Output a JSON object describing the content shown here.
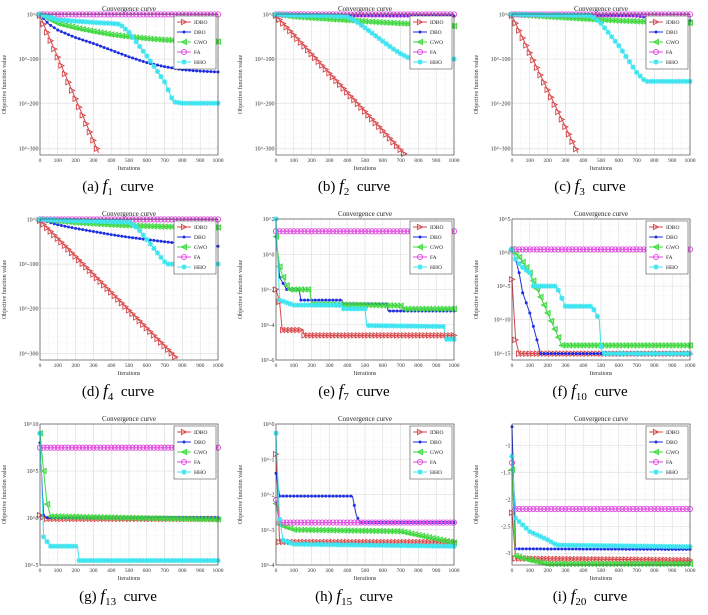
{
  "common": {
    "title": "Convergence curve",
    "xlabel": "Iterations",
    "ylabel": "Objective function value",
    "xticks": [
      0,
      100,
      200,
      300,
      400,
      500,
      600,
      700,
      800,
      900,
      1000
    ],
    "legend": [
      "IDBO",
      "DBO",
      "GWO",
      "FA",
      "HHO"
    ],
    "colors": {
      "IDBO": "#d9474a",
      "DBO": "#1f2ee0",
      "GWO": "#3fd83f",
      "FA": "#e04ae0",
      "HHO": "#3ee4ef"
    },
    "markers": {
      "IDBO": "tri-right",
      "DBO": "dot",
      "GWO": "tri-left",
      "FA": "circle",
      "HHO": "star"
    }
  },
  "chart_data": [
    {
      "type": "line",
      "caption": {
        "label": "(a)",
        "func": "f",
        "sub": "1",
        "suffix": "curve"
      },
      "yscale": "log",
      "ylim": [
        1e-315,
        10
      ],
      "yticks": [
        1,
        1e-100,
        1e-200,
        1e-300
      ],
      "yticklabels": [
        "10^0",
        "10^-100",
        "10^-200",
        "10^-300"
      ],
      "legend": "top-right",
      "series": [
        {
          "name": "IDBO",
          "x": [
            0,
            330
          ],
          "y": [
            0.001,
            1e-310
          ]
        },
        {
          "name": "DBO",
          "x": [
            0,
            50,
            100,
            200,
            300,
            400,
            500,
            600,
            700,
            800,
            900,
            1000
          ],
          "y": [
            1,
            1e-22,
            1e-35,
            1e-52,
            1e-65,
            1e-80,
            1e-95,
            1e-108,
            1e-117,
            1e-124,
            1e-127,
            1e-129
          ]
        },
        {
          "name": "GWO",
          "x": [
            0,
            50,
            100,
            200,
            300,
            400,
            500,
            600,
            700,
            800,
            900,
            1000
          ],
          "y": [
            1,
            1e-10,
            1e-20,
            1e-30,
            1e-38,
            1e-45,
            1e-50,
            1e-54,
            1e-57,
            1e-59,
            1e-60,
            1e-61
          ]
        },
        {
          "name": "FA",
          "x": [
            0,
            1000
          ],
          "y": [
            1,
            1
          ]
        },
        {
          "name": "HHO",
          "x": [
            0,
            100,
            200,
            300,
            400,
            450,
            500,
            600,
            700,
            750,
            800,
            1000
          ],
          "y": [
            1,
            1e-12,
            1e-15,
            1e-18,
            1e-20,
            1e-22,
            1e-40,
            1e-93,
            1e-151,
            1e-196,
            1e-199,
            1e-199
          ]
        }
      ]
    },
    {
      "type": "line",
      "caption": {
        "label": "(b)",
        "func": "f",
        "sub": "2",
        "suffix": "curve"
      },
      "yscale": "log",
      "ylim": [
        1e-315,
        10
      ],
      "yticks": [
        1,
        1e-100,
        1e-200,
        1e-300
      ],
      "yticklabels": [
        "10^0",
        "10^-100",
        "10^-200",
        "10^-300"
      ],
      "legend": "top-right",
      "series": [
        {
          "name": "IDBO",
          "x": [
            0,
            720
          ],
          "y": [
            0.001,
            1e-312
          ]
        },
        {
          "name": "DBO",
          "x": [
            0,
            1000
          ],
          "y": [
            0.001,
            0.0001
          ]
        },
        {
          "name": "GWO",
          "x": [
            0,
            100,
            200,
            400,
            600,
            800,
            1000
          ],
          "y": [
            1,
            1e-05,
            1e-08,
            1e-13,
            1e-18,
            1e-22,
            1e-26
          ]
        },
        {
          "name": "FA",
          "x": [
            0,
            1000
          ],
          "y": [
            1,
            1
          ]
        },
        {
          "name": "HHO",
          "x": [
            0,
            100,
            300,
            400,
            450,
            500,
            550,
            600,
            650,
            700,
            750,
            800,
            1000
          ],
          "y": [
            1,
            0.01,
            0.001,
            1e-05,
            1e-15,
            1e-30,
            1e-45,
            1e-60,
            1e-75,
            1e-88,
            1e-98,
            1e-100,
            1e-100
          ]
        }
      ]
    },
    {
      "type": "line",
      "caption": {
        "label": "(c)",
        "func": "f",
        "sub": "3",
        "suffix": "curve"
      },
      "yscale": "log",
      "ylim": [
        1e-315,
        10
      ],
      "yticks": [
        1,
        1e-100,
        1e-200,
        1e-300
      ],
      "yticklabels": [
        "10^0",
        "10^-100",
        "10^-200",
        "10^-300"
      ],
      "legend": "top-right",
      "series": [
        {
          "name": "IDBO",
          "x": [
            0,
            370
          ],
          "y": [
            0.001,
            1e-310
          ]
        },
        {
          "name": "DBO",
          "x": [
            0,
            600,
            700,
            800,
            900,
            1000
          ],
          "y": [
            0.1,
            0.01,
            0.0001,
            1e-08,
            1e-12,
            1e-14
          ]
        },
        {
          "name": "GWO",
          "x": [
            0,
            200,
            400,
            600,
            800,
            1000
          ],
          "y": [
            1,
            1e-05,
            1e-10,
            1e-14,
            1e-17,
            1e-19
          ]
        },
        {
          "name": "FA",
          "x": [
            0,
            1000
          ],
          "y": [
            1,
            1
          ]
        },
        {
          "name": "HHO",
          "x": [
            0,
            400,
            450,
            500,
            550,
            600,
            650,
            700,
            750,
            1000
          ],
          "y": [
            1,
            0.01,
            0.001,
            1e-20,
            1e-45,
            1e-70,
            1e-100,
            1e-130,
            1e-150,
            1e-150
          ]
        }
      ]
    },
    {
      "type": "line",
      "caption": {
        "label": "(d)",
        "func": "f",
        "sub": "4",
        "suffix": "curve"
      },
      "yscale": "log",
      "ylim": [
        1e-315,
        10
      ],
      "yticks": [
        1,
        1e-100,
        1e-200,
        1e-300
      ],
      "yticklabels": [
        "10^0",
        "10^-100",
        "10^-200",
        "10^-300"
      ],
      "legend": "top-right",
      "series": [
        {
          "name": "IDBO",
          "x": [
            0,
            770
          ],
          "y": [
            0.001,
            1e-312
          ]
        },
        {
          "name": "DBO",
          "x": [
            0,
            100,
            200,
            300,
            400,
            500,
            600,
            700,
            800,
            900,
            1000
          ],
          "y": [
            1,
            1e-12,
            1e-20,
            1e-27,
            1e-34,
            1e-40,
            1e-45,
            1e-50,
            1e-54,
            1e-57,
            1e-60
          ]
        },
        {
          "name": "GWO",
          "x": [
            0,
            200,
            400,
            600,
            800,
            1000
          ],
          "y": [
            1,
            1e-07,
            1e-12,
            1e-15,
            1e-17,
            1e-18
          ]
        },
        {
          "name": "FA",
          "x": [
            0,
            1000
          ],
          "y": [
            1,
            1
          ]
        },
        {
          "name": "HHO",
          "x": [
            0,
            200,
            400,
            500,
            550,
            600,
            650,
            700,
            720,
            1000
          ],
          "y": [
            1,
            0.001,
            1e-05,
            1e-06,
            1e-20,
            1e-45,
            1e-70,
            1e-95,
            1e-100,
            1e-100
          ]
        }
      ]
    },
    {
      "type": "line",
      "caption": {
        "label": "(e)",
        "func": "f",
        "sub": "7",
        "suffix": "curve"
      },
      "yscale": "log",
      "ylim": [
        1e-06,
        100
      ],
      "yticks": [
        100,
        1,
        0.01,
        0.0001,
        1e-06
      ],
      "yticklabels": [
        "10^2",
        "10^0",
        "10^-2",
        "10^-4",
        "10^-6"
      ],
      "legend": "top-right",
      "series": [
        {
          "name": "IDBO",
          "x": [
            0,
            20,
            35,
            150,
            160,
            1000
          ],
          "y": [
            0.01,
            0.002,
            5e-05,
            5e-05,
            2.5e-05,
            2.5e-05
          ]
        },
        {
          "name": "DBO",
          "x": [
            0,
            20,
            60,
            130,
            140,
            370,
            380,
            620,
            630,
            1000
          ],
          "y": [
            10,
            0.05,
            0.01,
            0.01,
            0.0025,
            0.0025,
            0.0015,
            0.0015,
            0.0006,
            0.0006
          ]
        },
        {
          "name": "GWO",
          "x": [
            0,
            20,
            40,
            70,
            190,
            200,
            710,
            720,
            1000
          ],
          "y": [
            10,
            0.2,
            0.05,
            0.01,
            0.01,
            0.0015,
            0.0012,
            0.0008,
            0.0008
          ]
        },
        {
          "name": "FA",
          "x": [
            0,
            1000
          ],
          "y": [
            20,
            20
          ]
        },
        {
          "name": "HHO",
          "x": [
            0,
            20,
            100,
            370,
            380,
            500,
            510,
            940,
            960,
            1000
          ],
          "y": [
            100,
            0.0025,
            0.0013,
            0.0013,
            0.0008,
            0.0008,
            9e-05,
            8e-05,
            1.5e-05,
            1.5e-05
          ]
        }
      ]
    },
    {
      "type": "line",
      "caption": {
        "label": "(f)",
        "func": "f",
        "sub": "10",
        "suffix": "curve"
      },
      "yscale": "log",
      "ylim": [
        1e-16,
        100000.0
      ],
      "yticks": [
        100000.0,
        1,
        1e-05,
        1e-10,
        1e-15
      ],
      "yticklabels": [
        "10^5",
        "10^0",
        "10^-5",
        "10^-10",
        "10^-15"
      ],
      "legend": "top-right",
      "series": [
        {
          "name": "IDBO",
          "x": [
            0,
            20,
            40,
            1000
          ],
          "y": [
            0.0001,
            1e-13,
            8.9e-16,
            8.9e-16
          ]
        },
        {
          "name": "DBO",
          "x": [
            0,
            20,
            40,
            60,
            100,
            140,
            160,
            1000
          ],
          "y": [
            3,
            0.1,
            0.001,
            1e-06,
            1e-09,
            1e-13,
            8.9e-16,
            8.9e-16
          ]
        },
        {
          "name": "GWO",
          "x": [
            0,
            50,
            100,
            150,
            200,
            250,
            280,
            1000
          ],
          "y": [
            3,
            0.1,
            0.001,
            1e-06,
            1e-09,
            1e-12,
            1.5e-14,
            1.5e-14
          ]
        },
        {
          "name": "FA",
          "x": [
            0,
            1000
          ],
          "y": [
            3,
            3
          ]
        },
        {
          "name": "HHO",
          "x": [
            0,
            20,
            50,
            100,
            120,
            250,
            300,
            450,
            490,
            500,
            510,
            1000
          ],
          "y": [
            3,
            0.1,
            0.01,
            0.001,
            1e-05,
            1e-05,
            1e-08,
            1e-08,
            1e-10,
            1e-14,
            8.9e-16,
            8.9e-16
          ]
        }
      ]
    },
    {
      "type": "line",
      "caption": {
        "label": "(g)",
        "func": "f",
        "sub": "13",
        "suffix": "curve"
      },
      "yscale": "log",
      "ylim": [
        1e-05,
        10000000000.0
      ],
      "yticks": [
        10000000000.0,
        100000.0,
        1,
        1e-05
      ],
      "yticklabels": [
        "10^10",
        "10^5",
        "10^0",
        "10^-5"
      ],
      "legend": "top-right",
      "series": [
        {
          "name": "IDBO",
          "x": [
            0,
            40,
            1000
          ],
          "y": [
            2,
            0.8,
            0.8
          ]
        },
        {
          "name": "DBO",
          "x": [
            0,
            20,
            40,
            1000
          ],
          "y": [
            100000000.0,
            2,
            1.1,
            1.1
          ]
        },
        {
          "name": "GWO",
          "x": [
            0,
            20,
            40,
            60,
            1000
          ],
          "y": [
            1000000000.0,
            100000.0,
            30,
            1.5,
            0.7
          ]
        },
        {
          "name": "FA",
          "x": [
            0,
            1000
          ],
          "y": [
            30000000.0,
            30000000.0
          ]
        },
        {
          "name": "HHO",
          "x": [
            0,
            20,
            40,
            60,
            210,
            220,
            1000
          ],
          "y": [
            1000000000.0,
            0.01,
            0.003,
            0.001,
            0.001,
            3e-05,
            3e-05
          ]
        }
      ]
    },
    {
      "type": "line",
      "caption": {
        "label": "(h)",
        "func": "f",
        "sub": "15",
        "suffix": "curve"
      },
      "yscale": "log",
      "ylim": [
        0.0001,
        1
      ],
      "yticks": [
        1,
        0.1,
        0.01,
        0.001,
        0.0001
      ],
      "yticklabels": [
        "10^0",
        "10^-1",
        "10^-2",
        "10^-3",
        "10^-4"
      ],
      "legend": "top-right",
      "series": [
        {
          "name": "IDBO",
          "x": [
            0,
            20,
            1000
          ],
          "y": [
            0.14,
            0.00045,
            0.00045
          ]
        },
        {
          "name": "DBO",
          "x": [
            0,
            20,
            430,
            450,
            470,
            1000
          ],
          "y": [
            0.04,
            0.009,
            0.009,
            0.0027,
            0.0016,
            0.0016
          ]
        },
        {
          "name": "GWO",
          "x": [
            0,
            20,
            100,
            700,
            1000
          ],
          "y": [
            0.0055,
            0.0014,
            0.001,
            0.0009,
            0.00043
          ]
        },
        {
          "name": "FA",
          "x": [
            0,
            20,
            1000
          ],
          "y": [
            0.007,
            0.0016,
            0.0016
          ]
        },
        {
          "name": "HHO",
          "x": [
            0,
            20,
            40,
            100,
            1000
          ],
          "y": [
            0.55,
            0.002,
            0.0005,
            0.00039,
            0.00034
          ]
        }
      ]
    },
    {
      "type": "line",
      "caption": {
        "label": "(i)",
        "func": "f",
        "sub": "20",
        "suffix": "curve"
      },
      "yscale": "linear",
      "ylim": [
        -3.22,
        -0.6
      ],
      "yticks": [
        -1,
        -1.5,
        -2,
        -2.5,
        -3
      ],
      "yticklabels": [
        "-1",
        "-1.5",
        "-2",
        "-2.5",
        "-3"
      ],
      "legend": "top-right",
      "series": [
        {
          "name": "IDBO",
          "x": [
            0,
            20,
            1000
          ],
          "y": [
            -2.25,
            -3.1,
            -3.13
          ]
        },
        {
          "name": "DBO",
          "x": [
            0,
            20,
            1000
          ],
          "y": [
            -0.65,
            -2.92,
            -2.93
          ]
        },
        {
          "name": "GWO",
          "x": [
            0,
            20,
            100,
            200,
            1000
          ],
          "y": [
            -1.45,
            -3.05,
            -3.13,
            -3.2,
            -3.2
          ]
        },
        {
          "name": "FA",
          "x": [
            0,
            20,
            1000
          ],
          "y": [
            -1.32,
            -2.18,
            -2.18
          ]
        },
        {
          "name": "HHO",
          "x": [
            0,
            20,
            100,
            200,
            250,
            1000
          ],
          "y": [
            -1.2,
            -2.35,
            -2.6,
            -2.75,
            -2.85,
            -2.88
          ]
        }
      ]
    }
  ]
}
